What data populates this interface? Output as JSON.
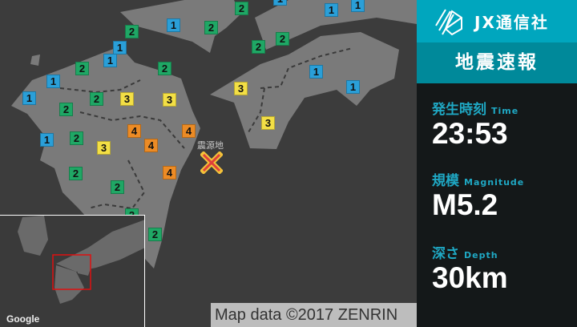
{
  "map": {
    "epicenter_label": "震源地",
    "attribution": "Map data ©2017 ZENRIN",
    "inset_logo": "Google",
    "colors": {
      "1": "#2a9fd8",
      "2": "#1fa765",
      "3": "#f3df45",
      "4": "#ec8b25"
    },
    "markers": [
      "2",
      "1",
      "1",
      "1",
      "2",
      "1",
      "2",
      "1",
      "1",
      "2",
      "2",
      "2",
      "2",
      "1",
      "1",
      "1",
      "2",
      "3",
      "3",
      "3",
      "1",
      "2",
      "1",
      "2",
      "3",
      "4",
      "4",
      "4",
      "3",
      "2",
      "4",
      "2",
      "2",
      "2"
    ]
  },
  "sidebar": {
    "brand": "JX通信社",
    "title": "地震速報",
    "time_label": "発生時刻",
    "time_label_en": "Time",
    "time": "23:53",
    "mag_label": "規模",
    "mag_label_en": "Magnitude",
    "magnitude": "M5.2",
    "depth_label": "深さ",
    "depth_label_en": "Depth",
    "depth": "30km",
    "accent": "#00a6be"
  }
}
